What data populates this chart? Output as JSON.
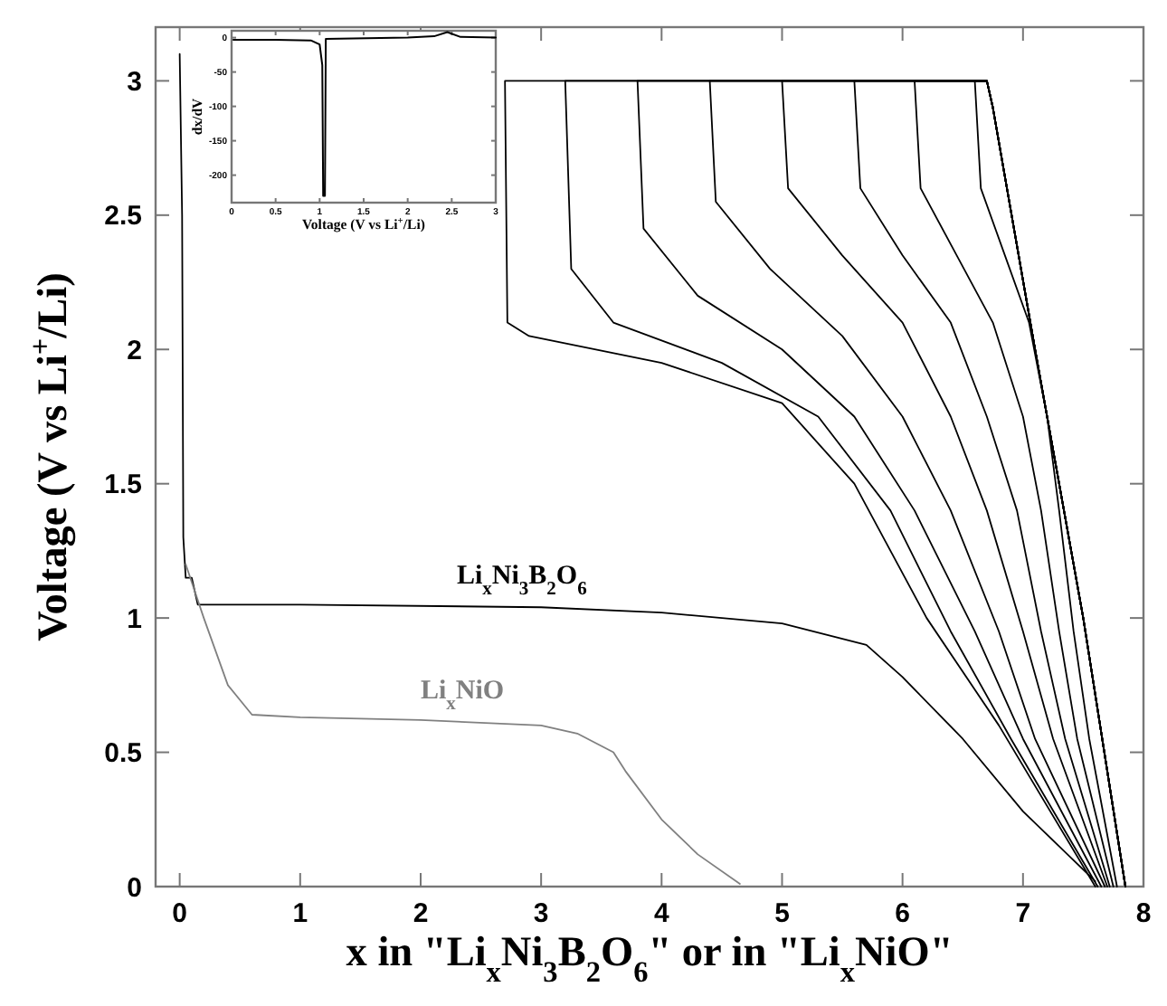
{
  "chart_data": [
    {
      "type": "line",
      "xlabel": "x in \"Li$_{x}$Ni$_{3}$B$_{2}$O$_{6}$\" or in \"Li$_{x}$NiO\"",
      "ylabel": "Voltage (V vs Li$^{+}$/Li)",
      "xlim": [
        -0.2,
        8
      ],
      "ylim": [
        0,
        3.2
      ],
      "xticks": [
        0,
        1,
        2,
        3,
        4,
        5,
        6,
        7,
        8
      ],
      "yticks": [
        0,
        0.5,
        1,
        1.5,
        2,
        2.5,
        3
      ],
      "grid": false,
      "marker": "none",
      "line_style": "solid",
      "series": [
        {
          "name": "Li$_{x}$Ni$_{3}$B$_{2}$O$_{6}$",
          "color": "#000000",
          "x": [
            0,
            0.02,
            0.03,
            0.05,
            0.1,
            0.15,
            1,
            3,
            4,
            5,
            5.7,
            6,
            6.5,
            7,
            7.6
          ],
          "values": [
            3.1,
            2.5,
            1.3,
            1.15,
            1.15,
            1.05,
            1.05,
            1.04,
            1.02,
            0.98,
            0.9,
            0.78,
            0.55,
            0.28,
            0.02
          ]
        },
        {
          "name": "Li$_{x}$NiO",
          "color": "#808080",
          "x": [
            0.05,
            0.2,
            0.4,
            0.6,
            1,
            2,
            3,
            3.3,
            3.6,
            3.7,
            4,
            4.3,
            4.65
          ],
          "values": [
            1.2,
            1.0,
            0.75,
            0.64,
            0.63,
            0.62,
            0.6,
            0.57,
            0.5,
            0.43,
            0.25,
            0.12,
            0.01
          ]
        },
        {
          "color": "#000000",
          "x": [
            7.85,
            7.5,
            7.1,
            6.75,
            6.7,
            2.7,
            2.72,
            2.9,
            4,
            5,
            5.6,
            6.2,
            6.8,
            7.6
          ],
          "values": [
            0,
            1,
            2,
            2.9,
            3,
            3,
            2.1,
            2.05,
            1.95,
            1.8,
            1.5,
            1.0,
            0.6,
            0
          ]
        },
        {
          "color": "#000000",
          "x": [
            7.85,
            7.5,
            7.1,
            6.75,
            6.7,
            3.2,
            3.25,
            3.6,
            4.5,
            5.3,
            5.9,
            6.4,
            6.9,
            7.62
          ],
          "values": [
            0,
            1,
            2,
            2.9,
            3,
            3,
            2.3,
            2.1,
            1.95,
            1.75,
            1.4,
            0.95,
            0.55,
            0
          ]
        },
        {
          "color": "#000000",
          "x": [
            7.85,
            7.5,
            7.1,
            6.75,
            6.7,
            3.8,
            3.85,
            4.3,
            5.0,
            5.6,
            6.1,
            6.6,
            7.0,
            7.65
          ],
          "values": [
            0,
            1,
            2,
            2.9,
            3,
            3,
            2.45,
            2.2,
            2.0,
            1.75,
            1.4,
            0.95,
            0.55,
            0
          ]
        },
        {
          "color": "#000000",
          "x": [
            7.85,
            7.5,
            7.1,
            6.75,
            6.7,
            4.4,
            4.45,
            4.9,
            5.5,
            6.0,
            6.4,
            6.8,
            7.1,
            7.68
          ],
          "values": [
            0,
            1,
            2,
            2.9,
            3,
            3,
            2.55,
            2.3,
            2.05,
            1.75,
            1.4,
            0.95,
            0.55,
            0
          ]
        },
        {
          "color": "#000000",
          "x": [
            7.85,
            7.5,
            7.1,
            6.75,
            6.7,
            5.0,
            5.05,
            5.5,
            6.0,
            6.4,
            6.7,
            7.0,
            7.25,
            7.7
          ],
          "values": [
            0,
            1,
            2,
            2.9,
            3,
            3,
            2.6,
            2.35,
            2.1,
            1.75,
            1.4,
            0.95,
            0.55,
            0
          ]
        },
        {
          "color": "#000000",
          "x": [
            7.85,
            7.5,
            7.1,
            6.75,
            6.7,
            5.6,
            5.65,
            6.0,
            6.4,
            6.7,
            6.95,
            7.15,
            7.35,
            7.72
          ],
          "values": [
            0,
            1,
            2,
            2.9,
            3,
            3,
            2.6,
            2.35,
            2.1,
            1.75,
            1.4,
            0.95,
            0.55,
            0
          ]
        },
        {
          "color": "#000000",
          "x": [
            7.85,
            7.5,
            7.1,
            6.75,
            6.7,
            6.1,
            6.15,
            6.45,
            6.75,
            7.0,
            7.15,
            7.3,
            7.45,
            7.75
          ],
          "values": [
            0,
            1,
            2,
            2.9,
            3,
            3,
            2.6,
            2.35,
            2.1,
            1.75,
            1.4,
            0.95,
            0.55,
            0
          ]
        },
        {
          "color": "#000000",
          "x": [
            7.85,
            7.5,
            7.1,
            6.75,
            6.7,
            6.6,
            6.65,
            6.85,
            7.05,
            7.2,
            7.3,
            7.42,
            7.55,
            7.78
          ],
          "values": [
            0,
            1,
            2,
            2.9,
            3,
            3,
            2.6,
            2.35,
            2.1,
            1.75,
            1.4,
            0.95,
            0.55,
            0
          ]
        }
      ]
    },
    {
      "type": "line",
      "xlabel": "Voltage (V vs Li$^{+}$/Li)",
      "ylabel": "dx/dV",
      "xlim": [
        0,
        3
      ],
      "ylim": [
        -240,
        10
      ],
      "xticks": [
        0,
        0.5,
        1,
        1.5,
        2,
        2.5,
        3
      ],
      "yticks": [
        0,
        -50,
        -100,
        -150,
        -200
      ],
      "grid": false,
      "marker": "none",
      "line_style": "solid",
      "series": [
        {
          "color": "#000000",
          "x": [
            0.02,
            0.5,
            0.9,
            1.0,
            1.03,
            1.04,
            1.06,
            1.07,
            2.0,
            2.3,
            2.45,
            2.6,
            3
          ],
          "values": [
            -3,
            -3,
            -4,
            -10,
            -40,
            -230,
            -230,
            -2,
            0,
            2,
            8,
            1,
            0
          ]
        }
      ]
    }
  ]
}
